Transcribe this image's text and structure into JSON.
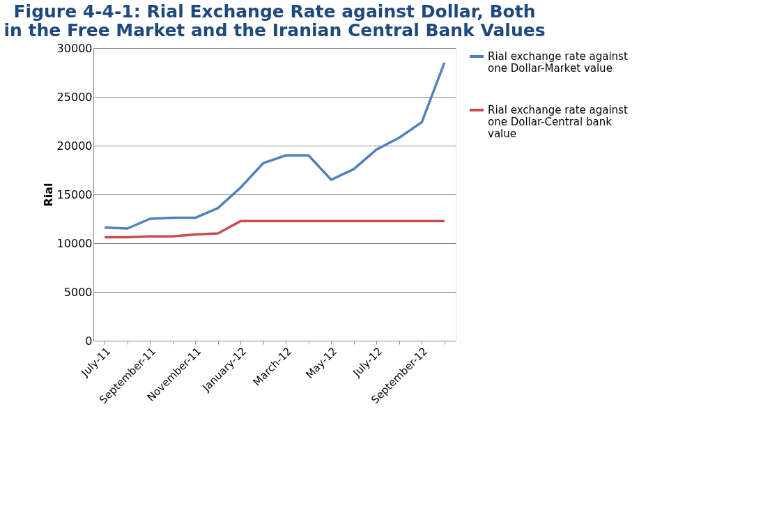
{
  "chart_data": {
    "type": "line",
    "title": "Figure 4-4-1: Rial Exchange Rate against Dollar, Both in the Free Market and the Iranian Central Bank Values",
    "ylabel": "Rial",
    "categories": [
      "July-11",
      null,
      "September-11",
      null,
      "November-11",
      null,
      "January-12",
      null,
      "March-12",
      null,
      "May-12",
      null,
      "July-12",
      null,
      "September-12",
      null
    ],
    "series": [
      {
        "name": "Rial exchange rate against one Dollar-Market value",
        "color": "#4f81bd",
        "values": [
          11600,
          11500,
          12500,
          12600,
          12600,
          13600,
          15700,
          18200,
          19000,
          19000,
          16500,
          17600,
          19600,
          20800,
          22400,
          28500
        ]
      },
      {
        "name": "Rial exchange rate against one Dollar-Central bank value",
        "color": "#c0504d",
        "values": [
          10600,
          10600,
          10700,
          10700,
          10900,
          11000,
          12260,
          12260,
          12260,
          12260,
          12260,
          12260,
          12260,
          12260,
          12260,
          12260
        ]
      }
    ],
    "ylim": [
      0,
      30000
    ],
    "yticks": [
      0,
      5000,
      10000,
      15000,
      20000,
      25000,
      30000
    ],
    "grid": "y",
    "legend": "right",
    "marker": "none",
    "line_style": "solid"
  }
}
